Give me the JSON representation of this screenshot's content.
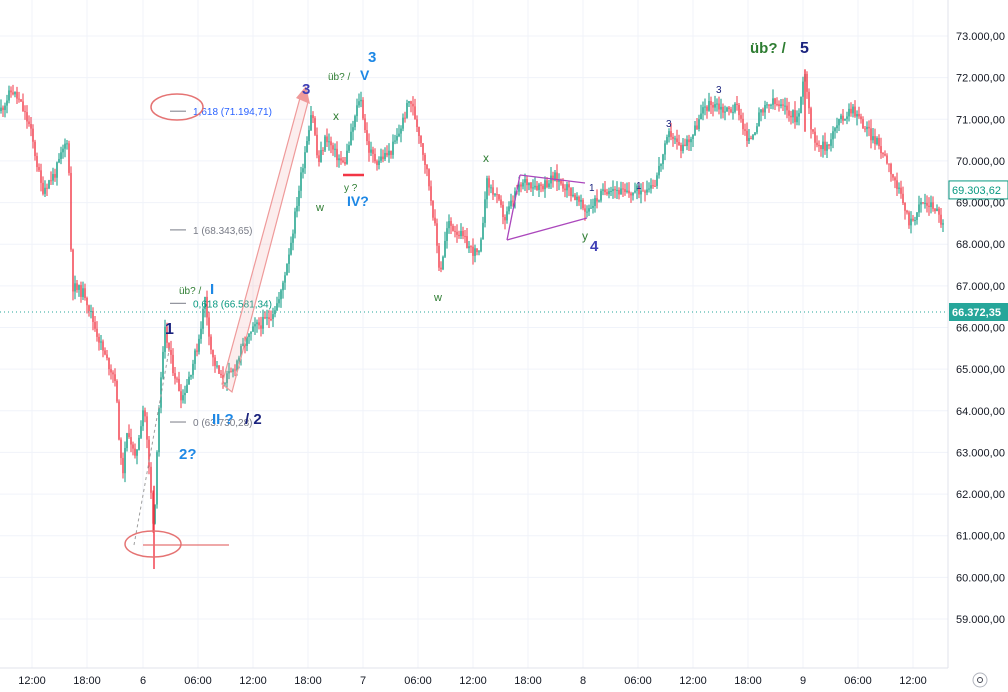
{
  "chart_data": {
    "type": "candlestick",
    "title": "",
    "xlabel": "",
    "ylabel": "",
    "ylim": [
      58500,
      73800
    ],
    "x_ticks": [
      "12:00",
      "18:00",
      "6",
      "06:00",
      "12:00",
      "18:00",
      "7",
      "06:00",
      "12:00",
      "18:00",
      "8",
      "06:00",
      "12:00",
      "18:00",
      "9",
      "06:00",
      "12:00"
    ],
    "y_ticks": [
      "73.000,00",
      "72.000,00",
      "71.000,00",
      "70.000,00",
      "69.000,00",
      "68.000,00",
      "67.000,00",
      "66.000,00",
      "65.000,00",
      "64.000,00",
      "63.000,00",
      "62.000,00",
      "61.000,00",
      "60.000,00",
      "59.000,00"
    ],
    "y_tick_values": [
      73000,
      72000,
      71000,
      70000,
      69000,
      68000,
      67000,
      66000,
      65000,
      64000,
      63000,
      62000,
      61000,
      60000,
      59000
    ],
    "price_path": [
      [
        0,
        71200
      ],
      [
        12,
        71700
      ],
      [
        20,
        71400
      ],
      [
        30,
        70800
      ],
      [
        42,
        69300
      ],
      [
        55,
        69700
      ],
      [
        68,
        70600
      ],
      [
        72,
        67000
      ],
      [
        85,
        66800
      ],
      [
        95,
        66000
      ],
      [
        105,
        65300
      ],
      [
        115,
        64800
      ],
      [
        122,
        62400
      ],
      [
        128,
        63600
      ],
      [
        135,
        62800
      ],
      [
        144,
        64200
      ],
      [
        150,
        62300
      ],
      [
        154,
        61100
      ],
      [
        158,
        63800
      ],
      [
        165,
        65900
      ],
      [
        172,
        65100
      ],
      [
        182,
        64300
      ],
      [
        190,
        64900
      ],
      [
        198,
        65600
      ],
      [
        205,
        66700
      ],
      [
        212,
        65300
      ],
      [
        222,
        64700
      ],
      [
        232,
        64900
      ],
      [
        242,
        65500
      ],
      [
        255,
        66000
      ],
      [
        268,
        66200
      ],
      [
        280,
        66700
      ],
      [
        292,
        68200
      ],
      [
        302,
        69800
      ],
      [
        312,
        71300
      ],
      [
        318,
        69900
      ],
      [
        326,
        70600
      ],
      [
        334,
        70200
      ],
      [
        344,
        69900
      ],
      [
        352,
        70700
      ],
      [
        360,
        71600
      ],
      [
        368,
        70300
      ],
      [
        376,
        70000
      ],
      [
        390,
        70200
      ],
      [
        398,
        70600
      ],
      [
        410,
        71500
      ],
      [
        420,
        70600
      ],
      [
        428,
        69600
      ],
      [
        434,
        68600
      ],
      [
        440,
        67300
      ],
      [
        448,
        68500
      ],
      [
        458,
        68300
      ],
      [
        470,
        67900
      ],
      [
        480,
        67700
      ],
      [
        486,
        69500
      ],
      [
        495,
        69200
      ],
      [
        505,
        68600
      ],
      [
        515,
        69200
      ],
      [
        525,
        69500
      ],
      [
        540,
        69400
      ],
      [
        555,
        69600
      ],
      [
        570,
        69300
      ],
      [
        585,
        68800
      ],
      [
        598,
        69100
      ],
      [
        610,
        69400
      ],
      [
        625,
        69200
      ],
      [
        640,
        69300
      ],
      [
        655,
        69500
      ],
      [
        670,
        70700
      ],
      [
        680,
        70300
      ],
      [
        692,
        70600
      ],
      [
        705,
        71300
      ],
      [
        715,
        71400
      ],
      [
        725,
        71200
      ],
      [
        738,
        71300
      ],
      [
        748,
        70400
      ],
      [
        760,
        71100
      ],
      [
        772,
        71400
      ],
      [
        788,
        71200
      ],
      [
        798,
        71000
      ],
      [
        805,
        72200
      ],
      [
        812,
        70600
      ],
      [
        825,
        70300
      ],
      [
        838,
        70900
      ],
      [
        852,
        71300
      ],
      [
        865,
        70800
      ],
      [
        878,
        70400
      ],
      [
        888,
        70000
      ],
      [
        898,
        69300
      ],
      [
        910,
        68500
      ],
      [
        922,
        69000
      ],
      [
        935,
        68900
      ],
      [
        944,
        68400
      ]
    ],
    "last_price_label": "69.303,62",
    "last_price": 69303.62,
    "crosshair_price_label": "66.372,35",
    "crosshair_price": 66372.35,
    "fib_levels": [
      {
        "label": "1,618 (71.194,71)",
        "value": 71194.71,
        "color": "#2962ff"
      },
      {
        "label": "1 (68.343,65)",
        "value": 68343.65,
        "color": "#787b86"
      },
      {
        "label": "0,618 (66.581,34)",
        "value": 66581.34,
        "color": "#089981"
      },
      {
        "label": "0 (63.730,28)",
        "value": 63730.28,
        "color": "#787b86"
      }
    ],
    "wave_labels": [
      {
        "text": "1",
        "color": "#1a237e",
        "price": 66200
      },
      {
        "text": "üb? /",
        "color": "#2e7d32",
        "price": 66950
      },
      {
        "text": "I",
        "color": "#1e88e5",
        "price": 66950
      },
      {
        "text": "2?",
        "color": "#1e88e5",
        "price": 63300
      },
      {
        "text": "II ?",
        "color": "#1e88e5",
        "price": 63950
      },
      {
        "text": "/ 2",
        "color": "#1a237e",
        "price": 63950
      },
      {
        "text": "3",
        "color": "#3f3fb5",
        "price": 72000
      },
      {
        "text": "w",
        "color": "#2e7d32",
        "price": 69150
      },
      {
        "text": "x",
        "color": "#2e7d32",
        "price": 71050
      },
      {
        "text": "üb? /",
        "color": "#2e7d32",
        "price": 71900
      },
      {
        "text": "V",
        "color": "#1e88e5",
        "price": 71900
      },
      {
        "text": "3",
        "color": "#1e88e5",
        "price": 72500
      },
      {
        "text": "y ?",
        "color": "#2e7d32",
        "price": 69500
      },
      {
        "text": "IV?",
        "color": "#1e88e5",
        "price": 69150
      },
      {
        "text": "x",
        "color": "#2e7d32",
        "price": 70150
      },
      {
        "text": "w",
        "color": "#2e7d32",
        "price": 66950
      },
      {
        "text": "1",
        "color": "#1a237e",
        "price": 69400
      },
      {
        "text": "y",
        "color": "#2e7d32",
        "price": 68400
      },
      {
        "text": "4",
        "color": "#3f3fb5",
        "price": 68150
      },
      {
        "text": "1",
        "color": "#1a237e",
        "price": 69550
      },
      {
        "text": "3",
        "color": "#1a237e",
        "price": 71100
      },
      {
        "text": "3",
        "color": "#1a237e",
        "price": 71850
      },
      {
        "text": "üb? /",
        "color": "#2e7d32",
        "price": 72650
      },
      {
        "text": "5",
        "color": "#1a237e",
        "price": 72650
      }
    ],
    "colors": {
      "up": "#089981",
      "down": "#f23645",
      "grid": "#f0f3fa",
      "fib_red": "#e57373",
      "triangle": "#ab47bc"
    }
  }
}
